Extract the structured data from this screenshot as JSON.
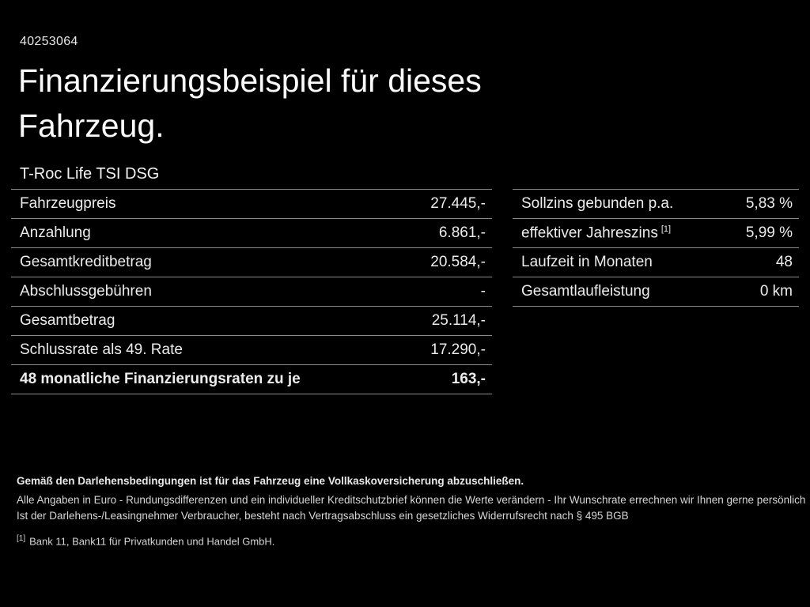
{
  "page": {
    "background_color": "#000000",
    "text_color": "#f0f0f0",
    "divider_color": "#8a8a8a"
  },
  "header": {
    "doc_id": "40253064",
    "title": "Finanzierungsbeispiel für dieses Fahrzeug.",
    "vehicle_model": "T-Roc Life TSI DSG"
  },
  "finance_table": {
    "rows": [
      {
        "label": "Fahrzeugpreis",
        "value": "27.445,-"
      },
      {
        "label": "Anzahlung",
        "value": "6.861,-"
      },
      {
        "label": "Gesamtkreditbetrag",
        "value": "20.584,-"
      },
      {
        "label": "Abschlussgebühren",
        "value": "-"
      },
      {
        "label": "Gesamtbetrag",
        "value": "25.114,-"
      },
      {
        "label": "Schlussrate als 49. Rate",
        "value": "17.290,-"
      },
      {
        "label": "48 monatliche Finanzierungsraten zu je",
        "value": "163,-"
      }
    ]
  },
  "conditions_table": {
    "rows": [
      {
        "label": "Sollzins gebunden p.a.",
        "sup_marker": "",
        "value": "5,83 %"
      },
      {
        "label": "effektiver Jahreszins",
        "sup_marker": "[1]",
        "value": "5,99 %"
      },
      {
        "label": "Laufzeit in Monaten",
        "sup_marker": "",
        "value": "48"
      },
      {
        "label": "Gesamtlaufleistung",
        "sup_marker": "",
        "value": "0 km"
      }
    ]
  },
  "footnotes": {
    "insurance_note": "Gemäß den Darlehensbedingungen ist für das Fahrzeug eine Vollkaskoversicherung abzuschließen.",
    "disclaimer_line1": "Alle Angaben in Euro - Rundungsdifferenzen und ein individueller Kreditschutzbrief können die Werte verändern - Ihr Wunschrate errechnen wir Ihnen gerne persönlich",
    "disclaimer_line2": "Ist der Darlehens-/Leasingnehmer Verbraucher, besteht nach Vertragsabschluss ein gesetzliches Widerrufsrecht nach § 495 BGB",
    "bank_ref_marker": "[1]",
    "bank_ref": "Bank 11, Bank11 für Privatkunden und Handel GmbH."
  }
}
